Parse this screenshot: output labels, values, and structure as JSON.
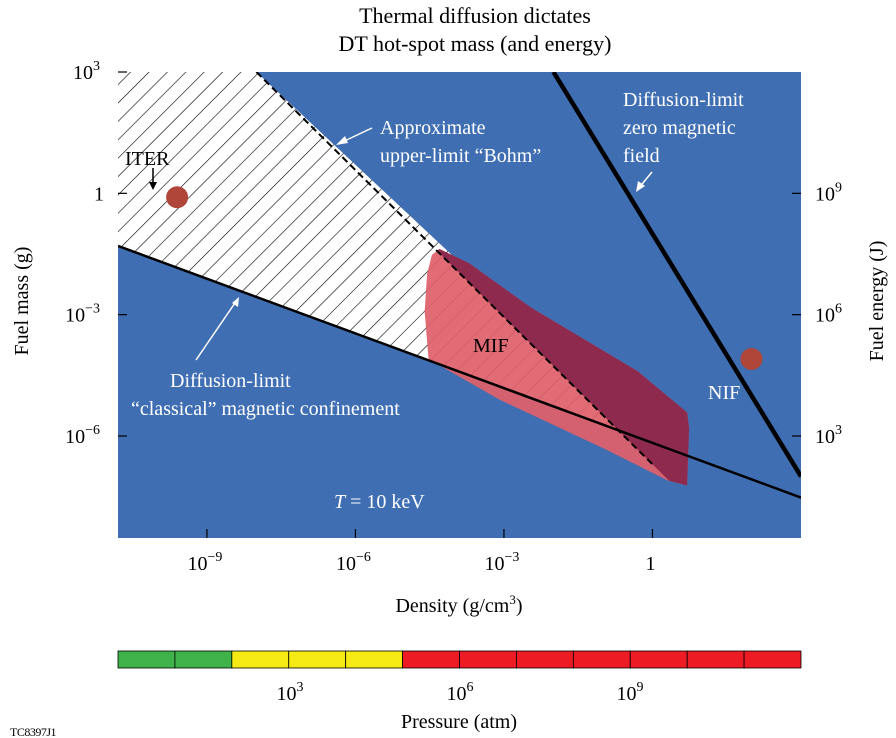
{
  "chart_data": {
    "type": "region-diagram",
    "title_lines": [
      "Thermal diffusion dictates",
      "DT hot-spot mass (and energy)"
    ],
    "xlabel_main": "Density (g/cm",
    "xlabel_sup": "3",
    "xlabel_close": ")",
    "ylabel": "Fuel mass (g)",
    "y2label": "Fuel energy (J)",
    "x_scale": "log",
    "y_scale": "log",
    "xlim": [
      1.6e-11,
      1000
    ],
    "ylim": [
      3e-09,
      1000
    ],
    "x_ticks": [
      {
        "value": 1e-09,
        "base": "10",
        "exp": "−9"
      },
      {
        "value": 1e-06,
        "base": "10",
        "exp": "−6"
      },
      {
        "value": 0.001,
        "base": "10",
        "exp": "−3"
      },
      {
        "value": 1,
        "base": "1",
        "exp": ""
      }
    ],
    "y_ticks": [
      {
        "value": 1000,
        "base": "10",
        "exp": "3"
      },
      {
        "value": 1,
        "base": "1",
        "exp": ""
      },
      {
        "value": 0.001,
        "base": "10",
        "exp": "−3"
      },
      {
        "value": 1e-06,
        "base": "10",
        "exp": "−6"
      }
    ],
    "y2_ticks": [
      {
        "value": 1,
        "base": "10",
        "exp": "9"
      },
      {
        "value": 0.001,
        "base": "10",
        "exp": "6"
      },
      {
        "value": 1e-06,
        "base": "10",
        "exp": "3"
      }
    ],
    "lines": [
      {
        "label": "Diffusion-limit zero magnetic field",
        "points": [
          [
            0.01,
            1000
          ],
          [
            1000,
            1e-07
          ]
        ],
        "width": 4.5
      },
      {
        "label": "Diffusion-limit “classical” magnetic confinement",
        "points": [
          [
            1.6e-11,
            0.05
          ],
          [
            1000,
            3e-08
          ]
        ],
        "width": 2.5
      },
      {
        "label": "Approximate upper-limit “Bohm”",
        "points": [
          [
            1e-08,
            1000
          ],
          [
            1,
            2e-07
          ]
        ],
        "width": 2,
        "dashed": true
      }
    ],
    "hatched_region": "between classical and Bohm limits",
    "regions": [
      {
        "label": "MIF",
        "color": "#e0606a",
        "overlap_color": "#8e2a4e",
        "polygon": [
          [
            3.5e-05,
            0.03
          ],
          [
            5e-05,
            0.042
          ],
          [
            0.0002,
            0.0185
          ],
          [
            0.0035,
            0.0015
          ],
          [
            0.5,
            4e-05
          ],
          [
            5,
            3.8e-06
          ],
          [
            5.5,
            1.6e-06
          ],
          [
            5,
            6e-08
          ],
          [
            2,
            8e-08
          ],
          [
            0.1,
            5e-07
          ],
          [
            0.0008,
            8e-06
          ],
          [
            3e-05,
            8e-05
          ],
          [
            2.5e-05,
            0.0012
          ],
          [
            2.8e-05,
            0.01
          ]
        ]
      }
    ],
    "points": [
      {
        "label": "ITER",
        "x": 2.5e-10,
        "y": 0.8,
        "color": "#b0463a"
      },
      {
        "label": "NIF",
        "x": 100,
        "y": 8e-05,
        "color": "#b0463a"
      }
    ],
    "annotations": {
      "bohm": [
        "Approximate",
        "upper-limit “Bohm”"
      ],
      "zero_field": [
        "Diffusion-limit",
        "zero magnetic",
        "field"
      ],
      "classical": [
        "Diffusion-limit",
        "“classical” magnetic confinement"
      ],
      "mif": "MIF",
      "iter": "ITER",
      "nif": "NIF",
      "temperature_var": "T",
      "temperature_rest": " = 10 keV"
    },
    "colors": {
      "background": "#3f6eb3",
      "hatch": "#000000",
      "mif": "#e0606a",
      "mif_overlap": "#8e2a4e",
      "marker": "#b0463a"
    },
    "pressure_bar": {
      "label": "Pressure (atm)",
      "segments": [
        "#3fb34a",
        "#3fb34a",
        "#f5ea14",
        "#f5ea14",
        "#f5ea14",
        "#ed1c24",
        "#ed1c24",
        "#ed1c24",
        "#ed1c24",
        "#ed1c24",
        "#ed1c24",
        "#ed1c24"
      ],
      "ticks": [
        {
          "base": "10",
          "exp": "3"
        },
        {
          "base": "10",
          "exp": "6"
        },
        {
          "base": "10",
          "exp": "9"
        }
      ]
    }
  },
  "figure_id": "TC8397J1"
}
